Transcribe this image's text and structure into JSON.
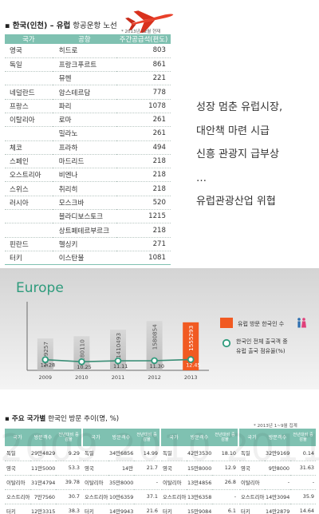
{
  "routes": {
    "title_bold": "▪ 한국(인천) – 유럽",
    "title_rest": " 항공운항 노선",
    "note": "* 2013년 12월 현재",
    "headers": [
      "국가",
      "공항",
      "주간공급석(편도)"
    ],
    "rows": [
      {
        "country": "영국",
        "airport": "히드로",
        "freq": "803"
      },
      {
        "country": "독일",
        "airport": "프랑크푸르트",
        "freq": "861"
      },
      {
        "country": "",
        "airport": "뮤헨",
        "freq": "221"
      },
      {
        "country": "네덜란드",
        "airport": "암스테르담",
        "freq": "778"
      },
      {
        "country": "프랑스",
        "airport": "파리",
        "freq": "1078"
      },
      {
        "country": "이탈리아",
        "airport": "로마",
        "freq": "261"
      },
      {
        "country": "",
        "airport": "밀라노",
        "freq": "261"
      },
      {
        "country": "체코",
        "airport": "프라하",
        "freq": "494"
      },
      {
        "country": "스페인",
        "airport": "마드리드",
        "freq": "218"
      },
      {
        "country": "오스트리아",
        "airport": "비엔나",
        "freq": "218"
      },
      {
        "country": "스위스",
        "airport": "취리히",
        "freq": "218"
      },
      {
        "country": "러시아",
        "airport": "모스크바",
        "freq": "520"
      },
      {
        "country": "",
        "airport": "블라디보스토크",
        "freq": "1215"
      },
      {
        "country": "",
        "airport": "상트페테르부르크",
        "freq": "218"
      },
      {
        "country": "핀란드",
        "airport": "헬싱키",
        "freq": "271"
      },
      {
        "country": "터키",
        "airport": "이스탄불",
        "freq": "1081"
      }
    ]
  },
  "headline_lines": [
    "성장 멈춘 유럽시장,",
    "대안책 마련 시급",
    "신흥 관광지 급부상",
    "…",
    "유럽관광산업 위협"
  ],
  "chart_data": {
    "type": "bar",
    "title": "Europe",
    "categories": [
      "2009",
      "2010",
      "2011",
      "2012",
      "2013"
    ],
    "series": [
      {
        "name": "유럽 방문 한국인 수",
        "type": "bar",
        "values": [
          1169257,
          1280110,
          1410493,
          1580854,
          1555293
        ],
        "labels": [
          "1169257",
          "1280110",
          "1410493",
          "1580854",
          "1555293"
        ],
        "color": "#c8c8c8",
        "highlight_color": "#f15a22"
      },
      {
        "name": "한국인 전체 출국객 중 유럽 출국 점유율(%)",
        "type": "line",
        "values": [
          12.28,
          10.25,
          11.11,
          11.3,
          12.45
        ],
        "labels": [
          "12.28",
          "10.25",
          "11.11",
          "11.30",
          "12.45"
        ],
        "color": "#2e9b7c"
      }
    ],
    "legend": {
      "bar": "유럽 방문 한국인 수",
      "line_1": "한국인 전체 출국객 중",
      "line_2": "유럽 출국 점유율(%)",
      "placement": "right"
    },
    "bar_ylim": [
      0,
      1700000
    ],
    "line_ylim": [
      0,
      100
    ],
    "grid": false
  },
  "visitors": {
    "title_bold": "▪ 주요 국가별",
    "title_rest": " 한국인 방문 추이(명, %)",
    "note": "* 2013년 1~9월 집계",
    "watermark": "2009 2010 2011 2012 2013",
    "header_country": "국가",
    "header_visitors": "방문객수",
    "header_growth": "전년대비 증감율",
    "tables": [
      {
        "year": "2009",
        "rows": [
          {
            "country": "독일",
            "visitors": "29만4829",
            "growth": "9.29"
          },
          {
            "country": "영국",
            "visitors": "11만5000",
            "growth": "53.3"
          },
          {
            "country": "이탈리아",
            "visitors": "31만4794",
            "growth": "39.78"
          },
          {
            "country": "오스트리아",
            "visitors": "7만7560",
            "growth": "30.7"
          },
          {
            "country": "터키",
            "visitors": "12만3315",
            "growth": "38.3"
          }
        ]
      },
      {
        "year": "2010",
        "rows": [
          {
            "country": "독일",
            "visitors": "34만6856",
            "growth": "14.99"
          },
          {
            "country": "영국",
            "visitors": "14만",
            "growth": "21.7"
          },
          {
            "country": "이탈리아",
            "visitors": "35만8000",
            "growth": "-"
          },
          {
            "country": "오스트리아",
            "visitors": "10만6359",
            "growth": "37.1"
          },
          {
            "country": "터키",
            "visitors": "14만9943",
            "growth": "21.6"
          }
        ]
      },
      {
        "year": "2011",
        "rows": [
          {
            "country": "독일",
            "visitors": "42만3530",
            "growth": "18.10"
          },
          {
            "country": "영국",
            "visitors": "15만8000",
            "growth": "12.9"
          },
          {
            "country": "이탈리아",
            "visitors": "13만4856",
            "growth": "26.8"
          },
          {
            "country": "오스트리아",
            "visitors": "13만6358",
            "growth": "-"
          },
          {
            "country": "터키",
            "visitors": "15만9084",
            "growth": "6.1"
          }
        ]
      },
      {
        "year": "2012",
        "rows": [
          {
            "country": "독일",
            "visitors": "32만9169",
            "growth": "0.14"
          },
          {
            "country": "영국",
            "visitors": "9만8000",
            "growth": "31.63"
          },
          {
            "country": "이탈리아",
            "visitors": "-",
            "growth": "-"
          },
          {
            "country": "오스트리아",
            "visitors": "14만3094",
            "growth": "35.9"
          },
          {
            "country": "터키",
            "visitors": "14만2879",
            "growth": "14.64"
          }
        ]
      }
    ]
  }
}
